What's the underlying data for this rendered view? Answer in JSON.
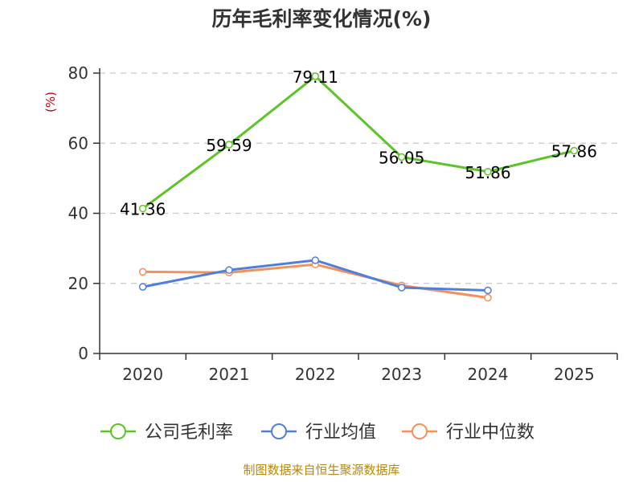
{
  "chart_data": {
    "type": "line",
    "title": "历年毛利率变化情况(%)",
    "ylabel": "(%)",
    "xlabel": "",
    "categories": [
      "2020",
      "2021",
      "2022",
      "2023",
      "2024",
      "2025"
    ],
    "ylim": [
      0,
      80
    ],
    "yticks": [
      0,
      20,
      40,
      60,
      80
    ],
    "grid": true,
    "legend_position": "bottom",
    "series": [
      {
        "name": "公司毛利率",
        "color": "#5cc427",
        "values": [
          41.36,
          59.59,
          79.11,
          56.05,
          51.86,
          57.86
        ],
        "labels": [
          "41.36",
          "59.59",
          "79.11",
          "56.05",
          "51.86",
          "57.86"
        ]
      },
      {
        "name": "行业均值",
        "color": "#4e7fdb",
        "values": [
          19.0,
          23.8,
          26.6,
          18.8,
          18.0,
          null
        ]
      },
      {
        "name": "行业中位数",
        "color": "#f5905a",
        "values": [
          23.3,
          23.1,
          25.4,
          19.4,
          15.9,
          null
        ]
      }
    ],
    "source": "制图数据来自恒生聚源数据库"
  }
}
